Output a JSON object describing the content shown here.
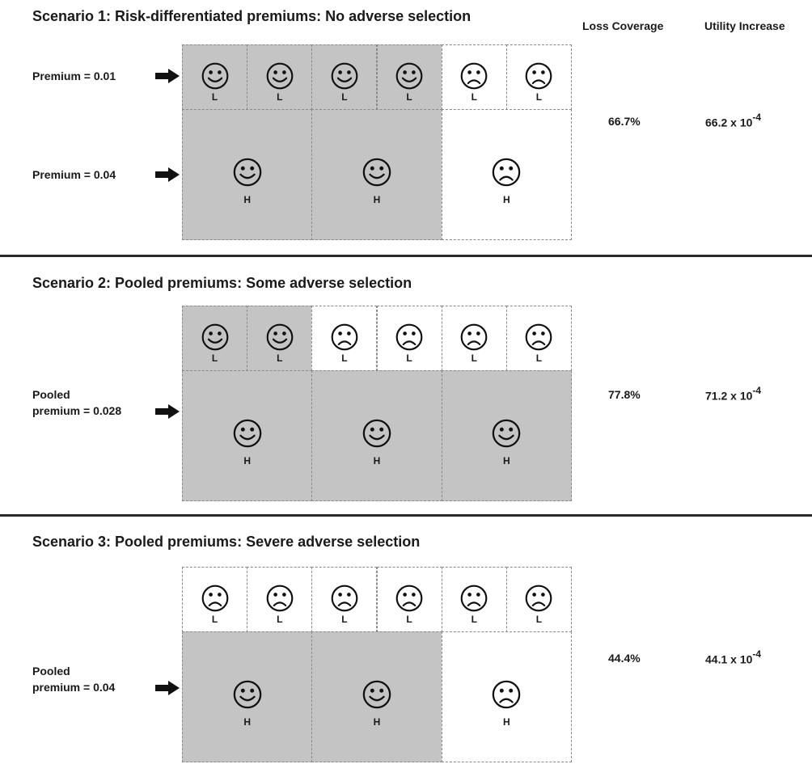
{
  "headers": {
    "loss_coverage": "Loss Coverage",
    "utility_increase": "Utility Increase"
  },
  "scenarios": [
    {
      "title": "Scenario 1: Risk-differentiated premiums: No adverse selection",
      "premium_rows": [
        {
          "lines": [
            "Premium = 0.01"
          ]
        },
        {
          "lines": [
            "Premium = 0.04"
          ]
        }
      ],
      "low_cells": [
        {
          "label": "L",
          "insured": true
        },
        {
          "label": "L",
          "insured": true
        },
        {
          "label": "L",
          "insured": true
        },
        {
          "label": "L",
          "insured": true
        },
        {
          "label": "L",
          "insured": false
        },
        {
          "label": "L",
          "insured": false
        }
      ],
      "high_cells": [
        {
          "label": "H",
          "insured": true
        },
        {
          "label": "H",
          "insured": true
        },
        {
          "label": "H",
          "insured": false
        }
      ],
      "loss_coverage": "66.7%",
      "utility_base": "66.2 x 10",
      "utility_exp": "-4"
    },
    {
      "title": "Scenario 2: Pooled premiums: Some adverse selection",
      "premium_rows": [
        {
          "lines": [
            "Pooled",
            "premium = 0.028"
          ]
        }
      ],
      "low_cells": [
        {
          "label": "L",
          "insured": true
        },
        {
          "label": "L",
          "insured": true
        },
        {
          "label": "L",
          "insured": false
        },
        {
          "label": "L",
          "insured": false
        },
        {
          "label": "L",
          "insured": false
        },
        {
          "label": "L",
          "insured": false
        }
      ],
      "high_cells": [
        {
          "label": "H",
          "insured": true
        },
        {
          "label": "H",
          "insured": true
        },
        {
          "label": "H",
          "insured": true
        }
      ],
      "loss_coverage": "77.8%",
      "utility_base": "71.2 x 10",
      "utility_exp": "-4"
    },
    {
      "title": "Scenario 3: Pooled premiums: Severe adverse selection",
      "premium_rows": [
        {
          "lines": [
            "Pooled",
            "premium = 0.04"
          ]
        }
      ],
      "low_cells": [
        {
          "label": "L",
          "insured": false
        },
        {
          "label": "L",
          "insured": false
        },
        {
          "label": "L",
          "insured": false
        },
        {
          "label": "L",
          "insured": false
        },
        {
          "label": "L",
          "insured": false
        },
        {
          "label": "L",
          "insured": false
        }
      ],
      "high_cells": [
        {
          "label": "H",
          "insured": true
        },
        {
          "label": "H",
          "insured": true
        },
        {
          "label": "H",
          "insured": false
        }
      ],
      "loss_coverage": "44.4%",
      "utility_base": "44.1 x 10",
      "utility_exp": "-4"
    }
  ],
  "colors": {
    "insured_fill": "#c4c4c4",
    "uninsured_fill": "#ffffff",
    "divider": "#2b2b2b"
  },
  "icons": {
    "insured": "smiley-face-icon",
    "uninsured": "frowning-face-icon",
    "pointer": "right-arrow-icon"
  }
}
